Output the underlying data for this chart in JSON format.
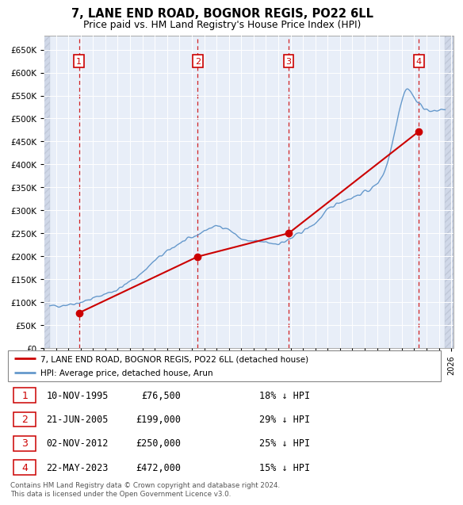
{
  "title": "7, LANE END ROAD, BOGNOR REGIS, PO22 6LL",
  "subtitle": "Price paid vs. HM Land Registry's House Price Index (HPI)",
  "y_ticks": [
    0,
    50000,
    100000,
    150000,
    200000,
    250000,
    300000,
    350000,
    400000,
    450000,
    500000,
    550000,
    600000,
    650000
  ],
  "sale_year_floats": [
    1995.86,
    2005.47,
    2012.84,
    2023.39
  ],
  "sale_prices": [
    76500,
    199000,
    250000,
    472000
  ],
  "table_rows": [
    [
      "1",
      "10-NOV-1995",
      "£76,500",
      "18% ↓ HPI"
    ],
    [
      "2",
      "21-JUN-2005",
      "£199,000",
      "29% ↓ HPI"
    ],
    [
      "3",
      "02-NOV-2012",
      "£250,000",
      "25% ↓ HPI"
    ],
    [
      "4",
      "22-MAY-2023",
      "£472,000",
      "15% ↓ HPI"
    ]
  ],
  "legend_entries": [
    "7, LANE END ROAD, BOGNOR REGIS, PO22 6LL (detached house)",
    "HPI: Average price, detached house, Arun"
  ],
  "footer": [
    "Contains HM Land Registry data © Crown copyright and database right 2024.",
    "This data is licensed under the Open Government Licence v3.0."
  ],
  "hpi_color": "#6699cc",
  "sale_color": "#cc0000",
  "bg_plot": "#e8eef8",
  "bg_hatch": "#d0d8e8",
  "hpi_start_year": 1993.5,
  "hpi_end_year": 2025.5,
  "x_min": 1993.0,
  "x_max": 2026.2
}
